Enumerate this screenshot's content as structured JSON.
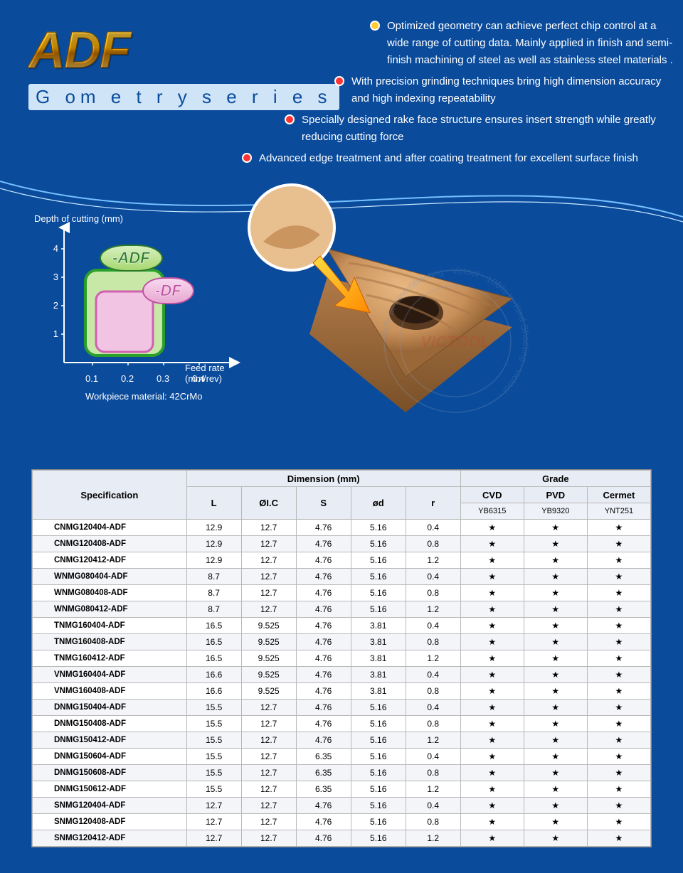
{
  "header": {
    "logo": "ADF",
    "subtitle": "G om e t r y  s e r i e s",
    "bullets": [
      {
        "color": "#ffcc33",
        "text": "Optimized geometry can achieve perfect chip control at a wide range of cutting data. Mainly applied in finish and semi-finish machining of steel as well as stainless steel materials ."
      },
      {
        "color": "#ff3333",
        "text": "With precision grinding techniques bring high dimension accuracy and high indexing repeatability"
      },
      {
        "color": "#ff3333",
        "text": "Specially designed rake face structure ensures insert strength while greatly reducing cutting force"
      },
      {
        "color": "#ff3333",
        "text": "Advanced edge treatment and after coating treatment for excellent surface finish"
      }
    ]
  },
  "chart": {
    "y_axis_label": "Depth of cutting (mm)",
    "x_axis_label": "Feed rate (mm/rev)",
    "workpiece_label": "Workpiece material: 42CrMo",
    "y_ticks": [
      "1",
      "2",
      "3",
      "4"
    ],
    "x_ticks": [
      "0.1",
      "0.2",
      "0.3",
      "0.4"
    ],
    "y_range": [
      0,
      4.5
    ],
    "x_range": [
      0,
      0.45
    ],
    "regions": {
      "adf": {
        "label": "-ADF",
        "x": [
          0.1,
          0.3
        ],
        "y": [
          0.3,
          3.0
        ],
        "stroke": "#2aa02a",
        "fill": "#c8e8a8"
      },
      "df": {
        "label": "-DF",
        "x": [
          0.12,
          0.28
        ],
        "y": [
          0.4,
          2.4
        ],
        "stroke": "#d060b0",
        "fill": "#f2c4e4"
      }
    },
    "axis_color": "#ffffff",
    "font_size": 13
  },
  "product_image": {
    "alt": "Triangular carbide turning insert with detail callout",
    "main_color": "#c8905a",
    "shadow_color": "#8a5a34",
    "arrow_colors": [
      "#ffdc40",
      "#ff8a00"
    ]
  },
  "watermark": {
    "text_outer": "100% In-Kind Shooting · victool · 100% In-Kind Shooting · victool ·",
    "text_center": "VICTOOL"
  },
  "table": {
    "head": {
      "spec": "Specification",
      "dim_group": "Dimension (mm)",
      "grade_group": "Grade",
      "dim_cols": [
        "L",
        "ØI.C",
        "S",
        "ød",
        "r"
      ],
      "grade_cols": [
        "CVD",
        "PVD",
        "Cermet"
      ],
      "grade_sub": [
        "YB6315",
        "YB9320",
        "YNT251"
      ]
    },
    "star": "★",
    "rows": [
      {
        "spec": "CNMG120404-ADF",
        "d": [
          12.9,
          12.7,
          4.76,
          5.16,
          0.4
        ],
        "g": [
          1,
          1,
          1
        ]
      },
      {
        "spec": "CNMG120408-ADF",
        "d": [
          12.9,
          12.7,
          4.76,
          5.16,
          0.8
        ],
        "g": [
          1,
          1,
          1
        ]
      },
      {
        "spec": "CNMG120412-ADF",
        "d": [
          12.9,
          12.7,
          4.76,
          5.16,
          1.2
        ],
        "g": [
          1,
          1,
          1
        ]
      },
      {
        "spec": "WNMG080404-ADF",
        "d": [
          8.7,
          12.7,
          4.76,
          5.16,
          0.4
        ],
        "g": [
          1,
          1,
          1
        ]
      },
      {
        "spec": "WNMG080408-ADF",
        "d": [
          8.7,
          12.7,
          4.76,
          5.16,
          0.8
        ],
        "g": [
          1,
          1,
          1
        ]
      },
      {
        "spec": "WNMG080412-ADF",
        "d": [
          8.7,
          12.7,
          4.76,
          5.16,
          1.2
        ],
        "g": [
          1,
          1,
          1
        ]
      },
      {
        "spec": "TNMG160404-ADF",
        "d": [
          16.5,
          9.525,
          4.76,
          3.81,
          0.4
        ],
        "g": [
          1,
          1,
          1
        ]
      },
      {
        "spec": "TNMG160408-ADF",
        "d": [
          16.5,
          9.525,
          4.76,
          3.81,
          0.8
        ],
        "g": [
          1,
          1,
          1
        ]
      },
      {
        "spec": "TNMG160412-ADF",
        "d": [
          16.5,
          9.525,
          4.76,
          3.81,
          1.2
        ],
        "g": [
          1,
          1,
          1
        ]
      },
      {
        "spec": "VNMG160404-ADF",
        "d": [
          16.6,
          9.525,
          4.76,
          3.81,
          0.4
        ],
        "g": [
          1,
          1,
          1
        ]
      },
      {
        "spec": "VNMG160408-ADF",
        "d": [
          16.6,
          9.525,
          4.76,
          3.81,
          0.8
        ],
        "g": [
          1,
          1,
          1
        ]
      },
      {
        "spec": "DNMG150404-ADF",
        "d": [
          15.5,
          12.7,
          4.76,
          5.16,
          0.4
        ],
        "g": [
          1,
          1,
          1
        ]
      },
      {
        "spec": "DNMG150408-ADF",
        "d": [
          15.5,
          12.7,
          4.76,
          5.16,
          0.8
        ],
        "g": [
          1,
          1,
          1
        ]
      },
      {
        "spec": "DNMG150412-ADF",
        "d": [
          15.5,
          12.7,
          4.76,
          5.16,
          1.2
        ],
        "g": [
          1,
          1,
          1
        ]
      },
      {
        "spec": "DNMG150604-ADF",
        "d": [
          15.5,
          12.7,
          6.35,
          5.16,
          0.4
        ],
        "g": [
          1,
          1,
          1
        ]
      },
      {
        "spec": "DNMG150608-ADF",
        "d": [
          15.5,
          12.7,
          6.35,
          5.16,
          0.8
        ],
        "g": [
          1,
          1,
          1
        ]
      },
      {
        "spec": "DNMG150612-ADF",
        "d": [
          15.5,
          12.7,
          6.35,
          5.16,
          1.2
        ],
        "g": [
          1,
          1,
          1
        ]
      },
      {
        "spec": "SNMG120404-ADF",
        "d": [
          12.7,
          12.7,
          4.76,
          5.16,
          0.4
        ],
        "g": [
          1,
          1,
          1
        ]
      },
      {
        "spec": "SNMG120408-ADF",
        "d": [
          12.7,
          12.7,
          4.76,
          5.16,
          0.8
        ],
        "g": [
          1,
          1,
          1
        ]
      },
      {
        "spec": "SNMG120412-ADF",
        "d": [
          12.7,
          12.7,
          4.76,
          5.16,
          1.2
        ],
        "g": [
          1,
          1,
          1
        ]
      }
    ]
  }
}
